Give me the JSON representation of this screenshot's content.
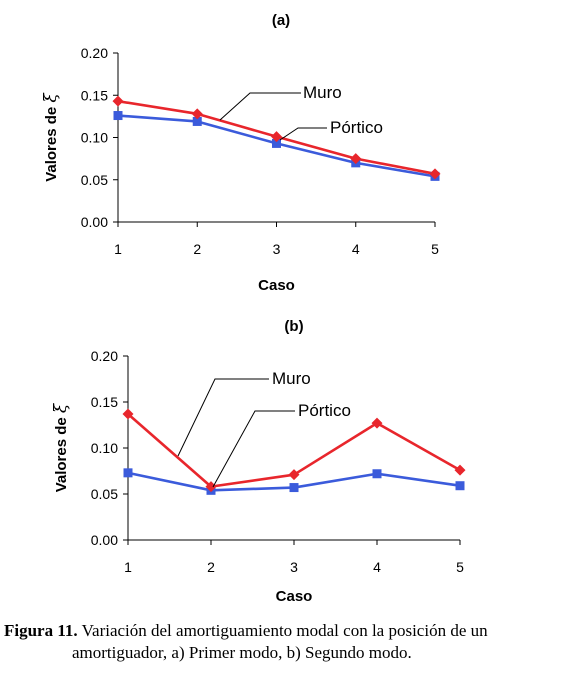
{
  "chart_data": [
    {
      "type": "line",
      "title": "(a)",
      "xlabel": "Caso",
      "ylabel_prefix": "Valores de",
      "ylabel_symbol": "ξ",
      "categories": [
        1,
        2,
        3,
        4,
        5
      ],
      "ylim": [
        0,
        0.2
      ],
      "yticks": [
        "0.00",
        "0.05",
        "0.10",
        "0.15",
        "0.20"
      ],
      "grid": false,
      "series": [
        {
          "name": "Muro",
          "color": "#e8262c",
          "marker": "diamond",
          "values": [
            0.143,
            0.128,
            0.101,
            0.075,
            0.057
          ]
        },
        {
          "name": "Pórtico",
          "color": "#3b5bdb",
          "marker": "square",
          "values": [
            0.126,
            0.119,
            0.093,
            0.07,
            0.054
          ]
        }
      ]
    },
    {
      "type": "line",
      "title": "(b)",
      "xlabel": "Caso",
      "ylabel_prefix": "Valores de",
      "ylabel_symbol": "ξ",
      "categories": [
        1,
        2,
        3,
        4,
        5
      ],
      "ylim": [
        0,
        0.2
      ],
      "yticks": [
        "0.00",
        "0.05",
        "0.10",
        "0.15",
        "0.20"
      ],
      "grid": false,
      "series": [
        {
          "name": "Muro",
          "color": "#e8262c",
          "marker": "diamond",
          "values": [
            0.137,
            0.058,
            0.071,
            0.127,
            0.076
          ]
        },
        {
          "name": "Pórtico",
          "color": "#3b5bdb",
          "marker": "square",
          "values": [
            0.073,
            0.054,
            0.057,
            0.072,
            0.059
          ]
        }
      ]
    }
  ],
  "caption": {
    "label": "Figura 11.",
    "line1": "Variación del amortiguamiento modal con la posición de un",
    "line2": "amortiguador, a) Primer modo, b) Segundo modo."
  }
}
